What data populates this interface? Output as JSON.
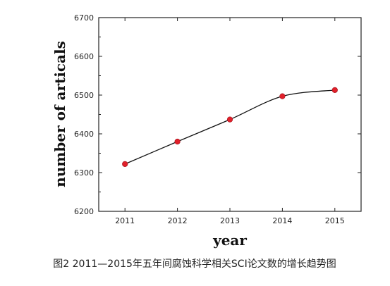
{
  "chart_data": {
    "type": "line",
    "title": "",
    "xlabel": "year",
    "ylabel": "number of articals",
    "x": [
      2011,
      2012,
      2013,
      2014,
      2015
    ],
    "series": [
      {
        "values": [
          6322,
          6380,
          6437,
          6497,
          6513
        ],
        "color": "#e0202a",
        "line_color": "#111111",
        "marker": "circle"
      }
    ],
    "xticks": [
      "2011",
      "2012",
      "2013",
      "2014",
      "2015"
    ],
    "yticks": [
      "6200",
      "6300",
      "6400",
      "6500",
      "6600",
      "6700"
    ],
    "xlim": [
      2010.5,
      2015.5
    ],
    "ylim": [
      6200,
      6700
    ],
    "grid": false,
    "legend": "none"
  },
  "caption": "图2 2011—2015年五年间腐蚀科学相关SCI论文数的增长趋势图"
}
